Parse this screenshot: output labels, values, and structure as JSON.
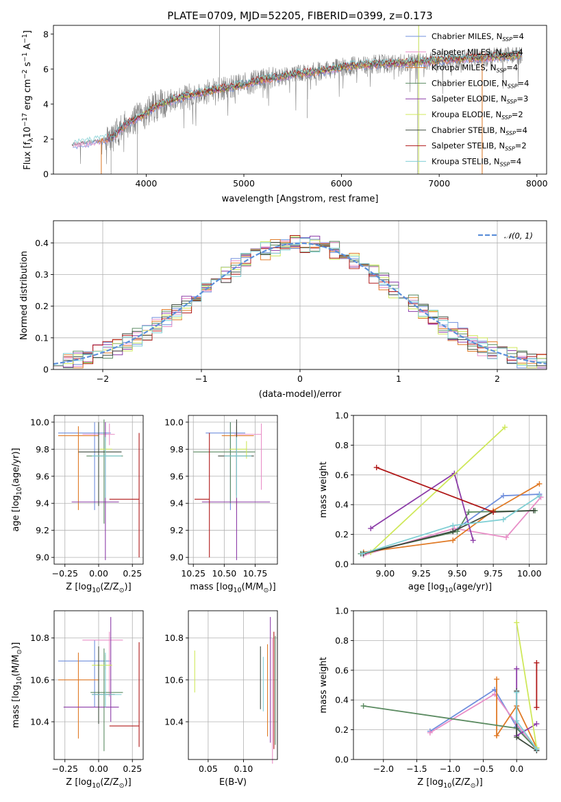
{
  "figure_title": "PLATE=0709, MJD=52205, FIBERID=0399, z=0.173",
  "series": [
    {
      "name": "Chabrier MILES",
      "nssp": "4",
      "color": "#6f8fdd"
    },
    {
      "name": "Salpeter MILES",
      "nssp": "4",
      "color": "#e88ec7"
    },
    {
      "name": "Kroupa MILES",
      "nssp": "4",
      "color": "#e07a26"
    },
    {
      "name": "Chabrier ELODIE",
      "nssp": "4",
      "color": "#5a8a60"
    },
    {
      "name": "Salpeter ELODIE",
      "nssp": "3",
      "color": "#8c3ca8"
    },
    {
      "name": "Kroupa ELODIE",
      "nssp": "2",
      "color": "#cfe85a"
    },
    {
      "name": "Chabrier STELIB",
      "nssp": "4",
      "color": "#3d4a3d"
    },
    {
      "name": "Salpeter STELIB",
      "nssp": "2",
      "color": "#b01818"
    },
    {
      "name": "Kroupa STELIB",
      "nssp": "4",
      "color": "#7fcfd4"
    }
  ],
  "data_color": "#808080",
  "chart_data": [
    {
      "id": "spectrum",
      "type": "line",
      "xlabel": "wavelength [Angstrom, rest frame]",
      "ylabel_parts": [
        "Flux [f",
        "λ",
        "10",
        "−17",
        " erg cm",
        "−2",
        " s",
        "−1",
        " A",
        "−1",
        "]"
      ],
      "xlim": [
        3050,
        8100
      ],
      "ylim": [
        0,
        8.5
      ],
      "xticks": [
        4000,
        5000,
        6000,
        7000,
        8000
      ],
      "yticks": [
        0,
        2,
        4,
        6,
        8
      ],
      "data_range": [
        3240,
        7850
      ],
      "continuum": [
        [
          3240,
          1.7
        ],
        [
          3500,
          1.9
        ],
        [
          3650,
          2.1
        ],
        [
          3800,
          2.9
        ],
        [
          3950,
          3.3
        ],
        [
          4100,
          3.9
        ],
        [
          4300,
          4.3
        ],
        [
          4600,
          4.7
        ],
        [
          4900,
          5.0
        ],
        [
          5200,
          5.4
        ],
        [
          5500,
          5.7
        ],
        [
          5800,
          5.9
        ],
        [
          6100,
          6.2
        ],
        [
          6400,
          6.3
        ],
        [
          6800,
          6.4
        ],
        [
          7200,
          6.6
        ],
        [
          7600,
          6.7
        ],
        [
          7850,
          6.8
        ]
      ],
      "spikes": [
        [
          3540,
          0
        ],
        [
          3640,
          0
        ],
        [
          3910,
          0
        ],
        [
          4750,
          8.5
        ],
        [
          5650,
          3.2
        ],
        [
          6780,
          0
        ],
        [
          6790,
          8.5
        ],
        [
          7440,
          0
        ],
        [
          7430,
          7.0
        ]
      ],
      "grid": false,
      "legend": "upper-right"
    },
    {
      "id": "residual-histogram",
      "type": "step-histogram",
      "xlabel": "(data-model)/error",
      "ylabel": "Normed distribution",
      "xlim": [
        -2.5,
        2.5
      ],
      "ylim": [
        0,
        0.47
      ],
      "xticks": [
        -2,
        -1,
        0,
        1,
        2
      ],
      "yticks": [
        0.0,
        0.1,
        0.2,
        0.3,
        0.4
      ],
      "bins": {
        "start": -2.5,
        "width": 0.1,
        "count": 50
      },
      "reference_curve": {
        "label": "𝒩(0, 1)",
        "mean": 0,
        "sigma": 1,
        "color": "#5b8fd9"
      },
      "grid": true,
      "legend": "upper-right"
    },
    {
      "id": "age-vs-Z",
      "type": "errorbar",
      "xlabel_parts": [
        "Z [log",
        "10",
        "(Z/Z",
        "⊙",
        ")]"
      ],
      "ylabel_parts": [
        "age  [log",
        "10",
        "(age/yr)]"
      ],
      "xlim": [
        -0.33,
        0.33
      ],
      "ylim": [
        8.95,
        10.05
      ],
      "xticks": [
        -0.25,
        0.0,
        0.25
      ],
      "xtick_labels": [
        "−0.25",
        "0.00",
        "0.25"
      ],
      "yticks": [
        9.0,
        9.2,
        9.4,
        9.6,
        9.8,
        10.0
      ],
      "ytick_labels": [
        "9.0",
        "9.2",
        "9.4",
        "9.6",
        "9.8",
        "10.0"
      ],
      "points": [
        {
          "s": 0,
          "x": -0.03,
          "xerr": [
            0.27,
            0.12
          ],
          "y": 9.92,
          "yerr": [
            0.57,
            0.08
          ]
        },
        {
          "s": 1,
          "x": 0.08,
          "xerr": [
            0.2,
            0.04
          ],
          "y": 9.91,
          "yerr": [
            0.08,
            0.08
          ]
        },
        {
          "s": 2,
          "x": -0.15,
          "xerr": [
            0.15,
            0.15
          ],
          "y": 9.9,
          "yerr": [
            0.55,
            0.07
          ]
        },
        {
          "s": 3,
          "x": 0.04,
          "xerr": [
            0.13,
            0.14
          ],
          "y": 9.75,
          "yerr": [
            0.5,
            0.27
          ]
        },
        {
          "s": 4,
          "x": 0.05,
          "xerr": [
            0.25,
            0.1
          ],
          "y": 9.41,
          "yerr": [
            0.43,
            0.59
          ]
        },
        {
          "s": 5,
          "x": 0.05,
          "xerr": [
            0.04,
            0.05
          ],
          "y": 9.8,
          "yerr": [
            0.04,
            0.06
          ]
        },
        {
          "s": 6,
          "x": 0.0,
          "xerr": [
            0.15,
            0.17
          ],
          "y": 9.78,
          "yerr": [
            0.4,
            0.22
          ]
        },
        {
          "s": 7,
          "x": 0.3,
          "xerr": [
            0.22,
            0.0
          ],
          "y": 9.43,
          "yerr": [
            0.43,
            0.49
          ]
        },
        {
          "s": 8,
          "x": 0.05,
          "xerr": [
            0.1,
            0.12
          ],
          "y": 9.75,
          "yerr": [
            0.31,
            0.14
          ]
        }
      ],
      "grid": true
    },
    {
      "id": "age-vs-mass",
      "type": "errorbar",
      "xlabel_parts": [
        "mass [log",
        "10",
        "(M/M",
        "⊙",
        ")]"
      ],
      "ylabel_parts": [],
      "xlim": [
        10.21,
        10.93
      ],
      "ylim": [
        8.95,
        10.05
      ],
      "xticks": [
        10.25,
        10.5,
        10.75
      ],
      "xtick_labels": [
        "10.25",
        "10.50",
        "10.75"
      ],
      "yticks": [
        9.0,
        9.2,
        9.4,
        9.6,
        9.8,
        10.0
      ],
      "ytick_labels": [
        "9.0",
        "9.2",
        "9.4",
        "9.6",
        "9.8",
        "10.0"
      ],
      "points": [
        {
          "s": 0,
          "x": 10.55,
          "xerr": [
            0.2,
            0.12
          ],
          "y": 9.92,
          "yerr": [
            0.57,
            0.08
          ]
        },
        {
          "s": 1,
          "x": 10.8,
          "xerr": [
            0.22,
            0.0
          ],
          "y": 9.91,
          "yerr": [
            0.41,
            0.08
          ]
        },
        {
          "s": 2,
          "x": 10.6,
          "xerr": [
            0.12,
            0.14
          ],
          "y": 9.9,
          "yerr": [
            0.55,
            0.07
          ]
        },
        {
          "s": 3,
          "x": 10.55,
          "xerr": [
            0.3,
            0.2
          ],
          "y": 9.78,
          "yerr": [
            0.38,
            0.22
          ]
        },
        {
          "s": 4,
          "x": 10.6,
          "xerr": [
            0.28,
            0.27
          ],
          "y": 9.41,
          "yerr": [
            0.43,
            0.59
          ]
        },
        {
          "s": 5,
          "x": 10.68,
          "xerr": [
            0.14,
            0.0
          ],
          "y": 9.8,
          "yerr": [
            0.07,
            0.06
          ]
        },
        {
          "s": 6,
          "x": 10.6,
          "xerr": [
            0.15,
            0.14
          ],
          "y": 9.75,
          "yerr": [
            0.29,
            0.27
          ]
        },
        {
          "s": 7,
          "x": 10.38,
          "xerr": [
            0.12,
            0.0
          ],
          "y": 9.43,
          "yerr": [
            0.43,
            0.49
          ]
        },
        {
          "s": 8,
          "x": 10.6,
          "xerr": [
            0.1,
            0.12
          ],
          "y": 9.75,
          "yerr": [
            0.31,
            0.14
          ]
        }
      ],
      "grid": true
    },
    {
      "id": "weight-vs-age",
      "type": "line",
      "xlabel_parts": [
        "age  [log",
        "10",
        "(age/yr)]"
      ],
      "ylabel": "mass weight",
      "xlim": [
        8.78,
        10.12
      ],
      "ylim": [
        0,
        1.0
      ],
      "xticks": [
        9.0,
        9.25,
        9.5,
        9.75,
        10.0
      ],
      "xtick_labels": [
        "9.00",
        "9.25",
        "9.50",
        "9.75",
        "10.00"
      ],
      "yticks": [
        0.0,
        0.2,
        0.4,
        0.6,
        0.8,
        1.0
      ],
      "ytick_labels": [
        "0.0",
        "0.2",
        "0.4",
        "0.6",
        "0.8",
        "1.0"
      ],
      "series_points": [
        {
          "s": 0,
          "x": [
            8.84,
            9.47,
            9.82,
            10.07
          ],
          "y": [
            0.07,
            0.22,
            0.46,
            0.47
          ]
        },
        {
          "s": 1,
          "x": [
            8.85,
            9.48,
            9.84,
            10.08
          ],
          "y": [
            0.06,
            0.24,
            0.18,
            0.45
          ]
        },
        {
          "s": 2,
          "x": [
            8.85,
            9.47,
            9.75,
            10.07
          ],
          "y": [
            0.08,
            0.16,
            0.36,
            0.54
          ]
        },
        {
          "s": 3,
          "x": [
            8.83,
            9.5,
            9.58,
            10.04
          ],
          "y": [
            0.07,
            0.22,
            0.35,
            0.36
          ]
        },
        {
          "s": 4,
          "x": [
            8.9,
            9.48,
            9.61
          ],
          "y": [
            0.24,
            0.61,
            0.16
          ]
        },
        {
          "s": 5,
          "x": [
            8.9,
            9.83
          ],
          "y": [
            0.08,
            0.92
          ]
        },
        {
          "s": 6,
          "x": [
            8.85,
            9.47,
            9.75,
            10.03
          ],
          "y": [
            0.07,
            0.22,
            0.35,
            0.36
          ]
        },
        {
          "s": 7,
          "x": [
            8.94,
            9.75
          ],
          "y": [
            0.65,
            0.35
          ]
        },
        {
          "s": 8,
          "x": [
            8.84,
            9.47,
            9.82,
            10.07
          ],
          "y": [
            0.07,
            0.26,
            0.3,
            0.46
          ]
        }
      ],
      "grid": true
    },
    {
      "id": "mass-vs-Z",
      "type": "errorbar",
      "xlabel_parts": [
        "Z [log",
        "10",
        "(Z/Z",
        "⊙",
        ")]"
      ],
      "ylabel_parts": [
        "mass [log",
        "10",
        "(M/M",
        "⊙",
        ")]"
      ],
      "xlim": [
        -0.33,
        0.33
      ],
      "ylim": [
        10.22,
        10.93
      ],
      "xticks": [
        -0.25,
        0.0,
        0.25
      ],
      "xtick_labels": [
        "−0.25",
        "0.00",
        "0.25"
      ],
      "yticks": [
        10.4,
        10.6,
        10.8
      ],
      "ytick_labels": [
        "10.4",
        "10.6",
        "10.8"
      ],
      "points": [
        {
          "s": 0,
          "x": -0.03,
          "xerr": [
            0.27,
            0.12
          ],
          "y": 10.69,
          "yerr": [
            0.22,
            0.1
          ]
        },
        {
          "s": 1,
          "x": 0.08,
          "xerr": [
            0.2,
            0.1
          ],
          "y": 10.79,
          "yerr": [
            0.27,
            0.04
          ]
        },
        {
          "s": 2,
          "x": -0.15,
          "xerr": [
            0.15,
            0.15
          ],
          "y": 10.6,
          "yerr": [
            0.28,
            0.13
          ]
        },
        {
          "s": 3,
          "x": 0.04,
          "xerr": [
            0.1,
            0.14
          ],
          "y": 10.54,
          "yerr": [
            0.28,
            0.21
          ]
        },
        {
          "s": 4,
          "x": 0.09,
          "xerr": [
            0.35,
            0.06
          ],
          "y": 10.47,
          "yerr": [
            0.07,
            0.43
          ]
        },
        {
          "s": 5,
          "x": 0.05,
          "xerr": [
            0.1,
            0.05
          ],
          "y": 10.67,
          "yerr": [
            0.02,
            0.05
          ]
        },
        {
          "s": 6,
          "x": 0.0,
          "xerr": [
            0.05,
            0.12
          ],
          "y": 10.53,
          "yerr": [
            0.14,
            0.23
          ]
        },
        {
          "s": 7,
          "x": 0.3,
          "xerr": [
            0.22,
            0.0
          ],
          "y": 10.38,
          "yerr": [
            0.1,
            0.4
          ]
        },
        {
          "s": 8,
          "x": 0.05,
          "xerr": [
            0.1,
            0.12
          ],
          "y": 10.53,
          "yerr": [
            0.06,
            0.2
          ]
        }
      ],
      "grid": true
    },
    {
      "id": "mass-vs-EBV",
      "type": "errorbar",
      "xlabel": "E(B-V)",
      "ylabel_parts": [],
      "xlim": [
        0.022,
        0.148
      ],
      "ylim": [
        10.22,
        10.93
      ],
      "xticks": [
        0.05,
        0.1
      ],
      "xtick_labels": [
        "0.05",
        "0.10"
      ],
      "yticks": [
        10.4,
        10.6,
        10.8
      ],
      "ytick_labels": [
        "10.4",
        "10.6",
        "10.8"
      ],
      "points": [
        {
          "s": 5,
          "x": 0.031,
          "xerr": [
            0,
            0
          ],
          "y": 10.64,
          "yerr": [
            0.1,
            0.1
          ]
        },
        {
          "s": 6,
          "x": 0.124,
          "xerr": [
            0,
            0
          ],
          "y": 10.61,
          "yerr": [
            0.15,
            0.15
          ]
        },
        {
          "s": 8,
          "x": 0.128,
          "xerr": [
            0,
            0
          ],
          "y": 10.58,
          "yerr": [
            0.13,
            0.13
          ]
        },
        {
          "s": 2,
          "x": 0.134,
          "xerr": [
            0,
            0
          ],
          "y": 10.55,
          "yerr": [
            0.22,
            0.22
          ]
        },
        {
          "s": 4,
          "x": 0.138,
          "xerr": [
            0,
            0
          ],
          "y": 10.6,
          "yerr": [
            0.3,
            0.3
          ]
        },
        {
          "s": 1,
          "x": 0.141,
          "xerr": [
            0,
            0
          ],
          "y": 10.5,
          "yerr": [
            0.3,
            0.3
          ]
        },
        {
          "s": 7,
          "x": 0.143,
          "xerr": [
            0,
            0
          ],
          "y": 10.55,
          "yerr": [
            0.28,
            0.28
          ]
        },
        {
          "s": 3,
          "x": 0.145,
          "xerr": [
            0,
            0
          ],
          "y": 10.55,
          "yerr": [
            0.26,
            0.26
          ]
        }
      ],
      "grid": true
    },
    {
      "id": "weight-vs-Z",
      "type": "line",
      "xlabel_parts": [
        "Z [log",
        "10",
        "(Z/Z",
        "⊙",
        ")]"
      ],
      "ylabel": "mass weight",
      "xlim": [
        -2.45,
        0.45
      ],
      "ylim": [
        0,
        1.0
      ],
      "xticks": [
        -2.0,
        -1.5,
        -1.0,
        -0.5,
        0.0
      ],
      "xtick_labels": [
        "−2.0",
        "−1.5",
        "−1.0",
        "−0.5",
        "0.0"
      ],
      "yticks": [
        0.0,
        0.2,
        0.4,
        0.6,
        0.8,
        1.0
      ],
      "ytick_labels": [
        "0.0",
        "0.2",
        "0.4",
        "0.6",
        "0.8",
        "1.0"
      ],
      "series_points": [
        {
          "s": 0,
          "x": [
            -1.3,
            -0.33,
            0.0,
            0.3
          ],
          "y": [
            0.19,
            0.47,
            0.22,
            0.07
          ]
        },
        {
          "s": 1,
          "x": [
            -1.3,
            -0.33,
            0.0,
            0.3
          ],
          "y": [
            0.18,
            0.44,
            0.24,
            0.06
          ]
        },
        {
          "s": 2,
          "x": [
            -0.3,
            -0.3,
            0.0,
            0.3
          ],
          "y": [
            0.54,
            0.16,
            0.36,
            0.08
          ]
        },
        {
          "s": 3,
          "x": [
            -2.3,
            0.0,
            0.3
          ],
          "y": [
            0.36,
            0.21,
            0.07
          ]
        },
        {
          "s": 4,
          "x": [
            0.0,
            0.0,
            0.3
          ],
          "y": [
            0.61,
            0.16,
            0.24
          ]
        },
        {
          "s": 5,
          "x": [
            0.0,
            0.3
          ],
          "y": [
            0.92,
            0.08
          ]
        },
        {
          "s": 6,
          "x": [
            0.0,
            0.0,
            0.3
          ],
          "y": [
            0.46,
            0.15,
            0.06
          ]
        },
        {
          "s": 7,
          "x": [
            0.3,
            0.3
          ],
          "y": [
            0.65,
            0.35
          ]
        },
        {
          "s": 8,
          "x": [
            0.0,
            0.0,
            0.3
          ],
          "y": [
            0.45,
            0.26,
            0.07
          ]
        }
      ],
      "grid": true
    }
  ]
}
